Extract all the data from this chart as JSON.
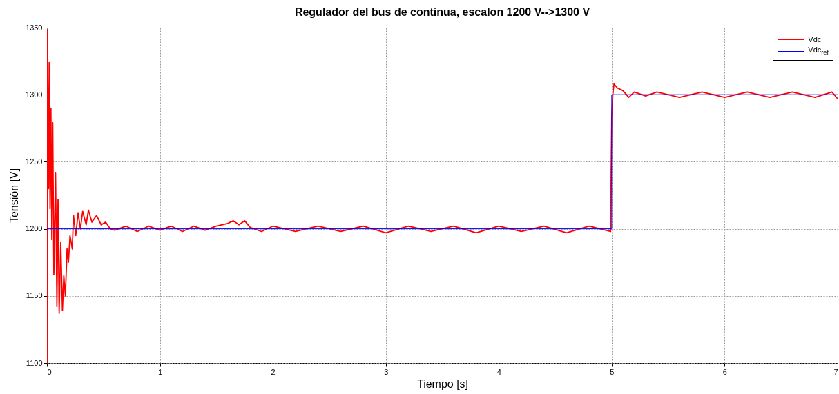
{
  "chart_data": {
    "type": "line",
    "title": "Regulador del bus de continua, escalon 1200 V-->1300 V",
    "xlabel": "Tiempo [s]",
    "ylabel": "Tensión [V]",
    "xlim": [
      0,
      7
    ],
    "xticks": [
      0,
      1,
      2,
      3,
      4,
      5,
      6,
      7
    ],
    "ylim": [
      1100,
      1350
    ],
    "yticks": [
      1100,
      1150,
      1200,
      1250,
      1300,
      1350
    ],
    "grid": true,
    "legend": "top right",
    "line_style": "solid",
    "series": [
      {
        "name": "Vdc",
        "color": "#ff0000",
        "x": [
          0,
          0.004,
          0.014,
          0.02,
          0.027,
          0.035,
          0.043,
          0.051,
          0.061,
          0.076,
          0.088,
          0.098,
          0.108,
          0.122,
          0.137,
          0.149,
          0.163,
          0.178,
          0.19,
          0.204,
          0.224,
          0.235,
          0.255,
          0.276,
          0.296,
          0.316,
          0.347,
          0.367,
          0.398,
          0.439,
          0.48,
          0.52,
          0.56,
          0.6,
          0.7,
          0.8,
          0.9,
          1.0,
          1.1,
          1.2,
          1.3,
          1.4,
          1.5,
          1.6,
          1.65,
          1.7,
          1.75,
          1.8,
          1.9,
          2.0,
          2.2,
          2.4,
          2.6,
          2.8,
          3.0,
          3.2,
          3.4,
          3.6,
          3.8,
          4.0,
          4.2,
          4.4,
          4.6,
          4.8,
          4.99,
          5.0,
          5.01,
          5.02,
          5.05,
          5.1,
          5.15,
          5.2,
          5.3,
          5.4,
          5.6,
          5.8,
          6.0,
          6.2,
          6.4,
          6.6,
          6.8,
          6.95,
          7.0
        ],
        "values": [
          1100,
          1348,
          1230,
          1324,
          1215,
          1290,
          1192,
          1279,
          1166,
          1242,
          1142,
          1222,
          1137,
          1190,
          1139,
          1165,
          1150,
          1185,
          1175,
          1195,
          1185,
          1210,
          1195,
          1212,
          1200,
          1213,
          1203,
          1214,
          1205,
          1210,
          1203,
          1205,
          1200,
          1199,
          1202,
          1198,
          1202,
          1199,
          1202,
          1198,
          1202,
          1199,
          1202,
          1204,
          1206,
          1203,
          1206,
          1201,
          1198,
          1202,
          1198,
          1202,
          1198,
          1202,
          1197,
          1202,
          1198,
          1202,
          1197,
          1202,
          1198,
          1202,
          1197,
          1202,
          1198,
          1283,
          1300,
          1308,
          1305,
          1303,
          1298,
          1302,
          1299,
          1302,
          1298,
          1302,
          1298,
          1302,
          1298,
          1302,
          1298,
          1302,
          1297
        ]
      },
      {
        "name": "Vdc$_{ref}$",
        "color": "#0000ff",
        "x": [
          0,
          5,
          5,
          7
        ],
        "values": [
          1200,
          1200,
          1300,
          1300
        ]
      }
    ]
  }
}
